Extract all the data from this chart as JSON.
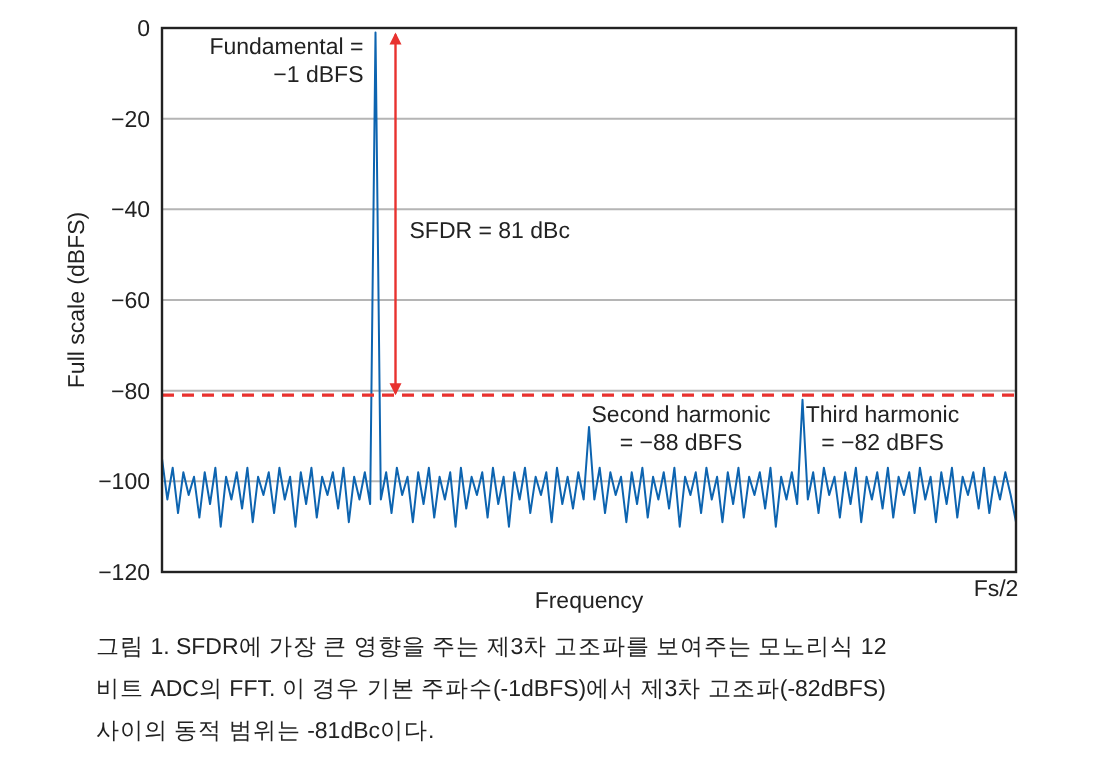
{
  "chart_data": {
    "type": "line",
    "xlabel": "Frequency",
    "ylabel": "Full scale (dBFS)",
    "categories": [
      null,
      null,
      null,
      null,
      null,
      null,
      null,
      null,
      null,
      null,
      null,
      null,
      null,
      null,
      null,
      null,
      null,
      null,
      null,
      null,
      null,
      null,
      null,
      null,
      null,
      null,
      null,
      null,
      null,
      null,
      null,
      null,
      null,
      null,
      null,
      null,
      null,
      null,
      null,
      null,
      null,
      null,
      null,
      null,
      null,
      null,
      null,
      null,
      null,
      null,
      null,
      null,
      null,
      null,
      null,
      null,
      null,
      null,
      null,
      null,
      null,
      null,
      null,
      null,
      null,
      null,
      null,
      null,
      null,
      null,
      null,
      null,
      null,
      null,
      null,
      null,
      null,
      null,
      null,
      null,
      null,
      null,
      null,
      null,
      null,
      null,
      null,
      null,
      null,
      null,
      null,
      null,
      null,
      null,
      null,
      null,
      null,
      null,
      null,
      null,
      null,
      null,
      null,
      null,
      null,
      null,
      null,
      null,
      null,
      null,
      null,
      null,
      null,
      null,
      null,
      null,
      null,
      null,
      null,
      null,
      null,
      null,
      null,
      null,
      null,
      null,
      null,
      null,
      null,
      null,
      null,
      null,
      null,
      null,
      null,
      null,
      null,
      null,
      null,
      null,
      null,
      null,
      null,
      null,
      null,
      null,
      null,
      null,
      null,
      null,
      null,
      null,
      null,
      null,
      null,
      null,
      null,
      null,
      null,
      null,
      null
    ],
    "series": [
      {
        "color": "#0d64b0",
        "values": [
          -95,
          -104,
          -97,
          -107,
          -98,
          -103,
          -99,
          -108,
          -98,
          -105,
          -97,
          -110,
          -99,
          -104,
          -98,
          -106,
          -97,
          -109,
          -99,
          -103,
          -98,
          -107,
          -97,
          -104,
          -99,
          -110,
          -98,
          -105,
          -97,
          -108,
          -99,
          -103,
          -98,
          -106,
          -97,
          -109,
          -99,
          -104,
          -98,
          -105,
          -1,
          -104,
          -98,
          -107,
          -97,
          -103,
          -99,
          -109,
          -98,
          -105,
          -97,
          -108,
          -99,
          -104,
          -98,
          -110,
          -97,
          -106,
          -99,
          -103,
          -98,
          -108,
          -97,
          -105,
          -99,
          -110,
          -98,
          -104,
          -97,
          -107,
          -99,
          -103,
          -98,
          -109,
          -97,
          -105,
          -99,
          -106,
          -98,
          -104,
          -88,
          -104,
          -97,
          -107,
          -98,
          -103,
          -99,
          -109,
          -98,
          -105,
          -97,
          -108,
          -99,
          -104,
          -98,
          -106,
          -97,
          -110,
          -99,
          -103,
          -98,
          -107,
          -97,
          -104,
          -99,
          -109,
          -98,
          -105,
          -97,
          -108,
          -99,
          -103,
          -98,
          -106,
          -97,
          -110,
          -99,
          -104,
          -98,
          -105,
          -82,
          -104,
          -98,
          -107,
          -97,
          -103,
          -99,
          -108,
          -98,
          -105,
          -97,
          -109,
          -99,
          -104,
          -98,
          -106,
          -97,
          -108,
          -99,
          -103,
          -98,
          -107,
          -97,
          -104,
          -99,
          -109,
          -98,
          -105,
          -97,
          -108,
          -99,
          -103,
          -98,
          -106,
          -97,
          -107,
          -99,
          -104,
          -98,
          -103,
          -109
        ]
      }
    ],
    "ylim": [
      -120,
      0
    ],
    "yticks": [
      0,
      {
        "value": -20,
        "label": "−20"
      },
      {
        "value": -40,
        "label": "−40"
      },
      {
        "value": -60,
        "label": "−60"
      },
      {
        "value": -80,
        "label": "−80"
      },
      {
        "value": -100,
        "label": "−100"
      },
      {
        "value": -120,
        "label": "−120"
      }
    ],
    "tick_labels": "y",
    "grid": "y",
    "ref_lines": [
      {
        "axis": "y",
        "value": -81,
        "color": "#e8322f",
        "line_style": "dashed"
      }
    ],
    "annotations": [
      "Fundamental =\n−1 dBFS",
      "SFDR = 81 dBc",
      "Second harmonic\n= −88 dBFS",
      "Third harmonic\n= −82 dBFS",
      "Fs/2",
      "그림 1. SFDR에 가장 큰 영향을 주는 제3차 고조파를 보여주는 모노리식 12비트 ADC의 FFT. 이 경우 기본 주파수(-1dBFS)에서 제3차 고조파(-82dBFS) 사이의 동적 범위는 -81dBc이다."
    ]
  }
}
